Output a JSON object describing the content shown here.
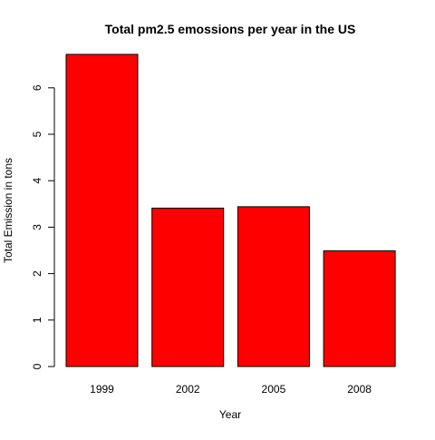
{
  "chart_data": {
    "type": "bar",
    "title": "Total pm2.5 emossions per year in the US",
    "xlabel": "Year",
    "ylabel": "Total Emission in tons",
    "categories": [
      "1999",
      "2002",
      "2005",
      "2008"
    ],
    "values": [
      6.72,
      3.41,
      3.44,
      2.49
    ],
    "ylim": [
      0,
      7
    ],
    "yticks": [
      0,
      1,
      2,
      3,
      4,
      5,
      6
    ],
    "bar_color": "#ff0000",
    "bar_border_color": "#000000",
    "grid": false,
    "legend": "none"
  }
}
